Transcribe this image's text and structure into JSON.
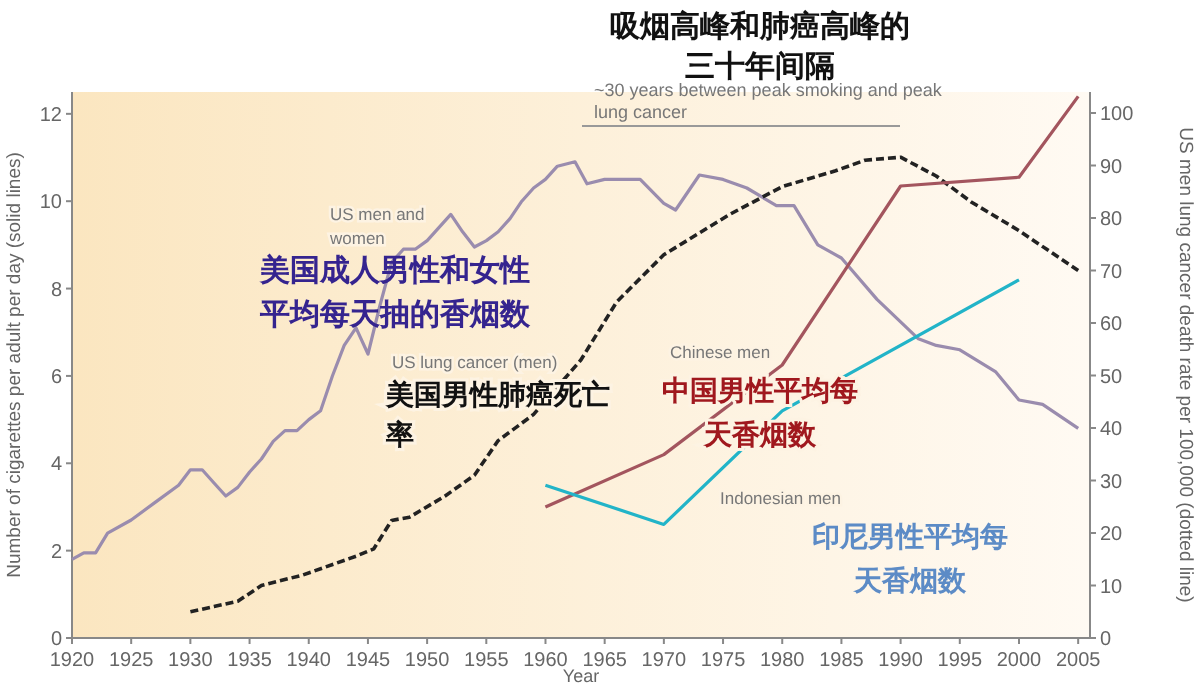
{
  "chart_data": {
    "type": "line",
    "title": "吸烟高峰和肺癌高峰的三十年间隔",
    "xlabel": "Year",
    "ylabel": "Number of cigarettes per adult per day (solid lines)",
    "y2label": "US men lung cancer death rate per 100,000 (dotted line)",
    "xlim": [
      1920,
      2006
    ],
    "xticks": [
      1920,
      1925,
      1930,
      1935,
      1940,
      1945,
      1950,
      1955,
      1960,
      1965,
      1970,
      1975,
      1980,
      1985,
      1990,
      1995,
      2000,
      2005
    ],
    "ylim": [
      0,
      12.5
    ],
    "yticks": [
      0,
      2,
      4,
      6,
      8,
      10,
      12
    ],
    "y2lim": [
      0,
      104
    ],
    "y2ticks": [
      0,
      10,
      20,
      30,
      40,
      50,
      60,
      70,
      80,
      90,
      100
    ],
    "grid": false,
    "marker": "none",
    "series": [
      {
        "name": "US men and women",
        "color": "#9a8cae",
        "line_style": "solid",
        "x": [
          1920,
          1921,
          1922,
          1923,
          1925,
          1927,
          1929,
          1930,
          1931,
          1932,
          1933,
          1934,
          1935,
          1936,
          1937,
          1938,
          1939,
          1940,
          1941,
          1942,
          1943,
          1944,
          1945,
          1946,
          1947,
          1948,
          1949,
          1950,
          1952,
          1953,
          1954,
          1955,
          1956,
          1957,
          1958,
          1959,
          1960,
          1961,
          1962.5,
          1963.5,
          1965,
          1968,
          1970,
          1971,
          1973,
          1975,
          1977,
          1979.5,
          1981,
          1983,
          1985,
          1988,
          1991.5,
          1993,
          1995,
          1998,
          2000,
          2002,
          2005
        ],
        "values": [
          1.8,
          1.95,
          1.95,
          2.4,
          2.7,
          3.1,
          3.5,
          3.85,
          3.85,
          3.55,
          3.25,
          3.45,
          3.8,
          4.1,
          4.5,
          4.75,
          4.75,
          5.0,
          5.2,
          6.0,
          6.7,
          7.1,
          6.5,
          7.6,
          8.6,
          8.9,
          8.9,
          9.1,
          9.7,
          9.3,
          8.95,
          9.1,
          9.3,
          9.6,
          10.0,
          10.3,
          10.5,
          10.8,
          10.9,
          10.4,
          10.5,
          10.5,
          9.95,
          9.8,
          10.6,
          10.5,
          10.3,
          9.9,
          9.9,
          9.0,
          8.7,
          7.75,
          6.85,
          6.7,
          6.6,
          6.1,
          5.45,
          5.35,
          4.8
        ]
      },
      {
        "name": "US lung cancer (men)",
        "color": "#222222",
        "line_style": "dashed",
        "axis": "y2",
        "x": [
          1930,
          1932,
          1934,
          1936,
          1939.5,
          1944,
          1945.5,
          1947,
          1948.5,
          1951.5,
          1954,
          1956,
          1959,
          1963,
          1966,
          1970,
          1975.5,
          1980,
          1984.5,
          1987,
          1990,
          1993,
          1996,
          2000,
          2005
        ],
        "values": [
          5,
          6,
          7,
          10,
          12,
          15.6,
          17,
          22.4,
          23,
          27,
          31,
          37.6,
          42.6,
          53,
          64,
          73,
          80.6,
          86,
          89,
          91,
          91.6,
          88,
          83,
          77.6,
          70
        ]
      },
      {
        "name": "Chinese men",
        "color": "#a3555e",
        "line_style": "solid",
        "x": [
          1960,
          1970,
          1980,
          1990,
          2000,
          2005
        ],
        "values": [
          3.0,
          4.2,
          6.25,
          10.35,
          10.55,
          12.4
        ]
      },
      {
        "name": "Indonesian men",
        "color": "#22b4c8",
        "line_style": "solid",
        "x": [
          1960,
          1970,
          1980,
          2000
        ],
        "values": [
          3.5,
          2.6,
          5.2,
          8.2
        ]
      }
    ],
    "annotations": [
      "~30 years between peak smoking and peak lung cancer",
      "美国成人男性和女性平均每天抽的香烟数",
      "美国男性肺癌死亡率",
      "中国男性平均每天香烟数",
      "印尼男性平均每天香烟数"
    ]
  }
}
